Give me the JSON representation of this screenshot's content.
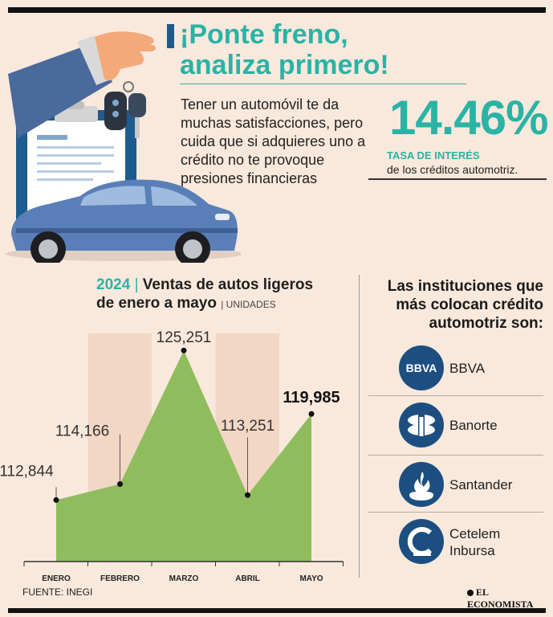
{
  "header": {
    "title_line1": "¡Ponte freno,",
    "title_line2": "analiza primero!",
    "intro": "Tener un automóvil te da muchas satisfacciones, pero cuida que si adquieres uno a crédito no te provoque presiones financieras"
  },
  "rate": {
    "value": "14.46%",
    "label": "TASA DE INTERÉS",
    "description": "de los créditos automotriz."
  },
  "chart_title": {
    "year": "2024",
    "separator": "|",
    "line1": "Ventas de autos ligeros",
    "line2": "de enero a mayo",
    "unit": "| UNIDADES"
  },
  "chart_data": {
    "type": "area",
    "title": "Ventas de autos ligeros de enero a mayo",
    "categories": [
      "ENERO",
      "FEBRERO",
      "MARZO",
      "ABRIL",
      "MAYO"
    ],
    "values": [
      112844,
      114166,
      125251,
      113251,
      119985
    ],
    "value_labels": [
      "112,844",
      "114,166",
      "125,251",
      "113,251",
      "119,985"
    ],
    "highlighted_index": 4,
    "area_color": "#8fbd5e",
    "point_color": "#111111"
  },
  "source": "FUENTE: INEGI",
  "institutions": {
    "title": "Las instituciones que más colocan crédito automotriz son:",
    "banks": [
      {
        "name": "BBVA",
        "logo_text": "BBVA",
        "icon": "bbva-logo-icon"
      },
      {
        "name": "Banorte",
        "icon": "banorte-logo-icon"
      },
      {
        "name": "Santander",
        "icon": "santander-flame-icon"
      },
      {
        "name_line1": "Cetelem",
        "name_line2": "Inbursa",
        "icon": "cetelem-logo-icon"
      }
    ]
  },
  "brand": "EL ECONOMISTA",
  "colors": {
    "accent": "#2ab3a6",
    "bank_blue": "#1c4f80",
    "background": "#f9e9dc"
  }
}
